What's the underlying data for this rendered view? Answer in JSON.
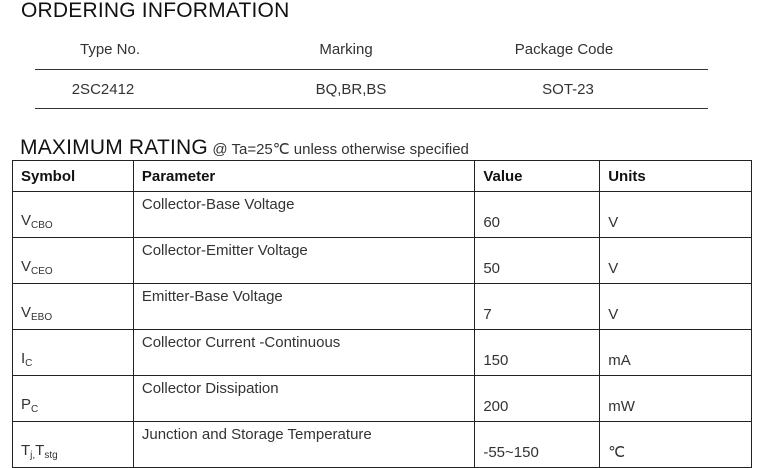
{
  "ordering": {
    "title": "ORDERING INFORMATION",
    "headers": [
      "Type No.",
      "Marking",
      "Package Code"
    ],
    "row": [
      "2SC2412",
      "BQ,BR,BS",
      "SOT-23"
    ]
  },
  "max_rating": {
    "title": "MAXIMUM RATING",
    "condition": "@ Ta=25℃ unless otherwise specified",
    "headers": [
      "Symbol",
      "Parameter",
      "Value",
      "Units"
    ],
    "rows": [
      {
        "sym": "V",
        "sub": "CBO",
        "param": "Collector-Base Voltage",
        "value": "60",
        "unit": "V"
      },
      {
        "sym": "V",
        "sub": "CEO",
        "param": "Collector-Emitter Voltage",
        "value": "50",
        "unit": "V"
      },
      {
        "sym": "V",
        "sub": "EBO",
        "param": "Emitter-Base Voltage",
        "value": "7",
        "unit": "V"
      },
      {
        "sym": "I",
        "sub": "C",
        "param": "Collector Current -Continuous",
        "value": "150",
        "unit": "mA"
      },
      {
        "sym": "P",
        "sub": "C",
        "param": "Collector Dissipation",
        "value": "200",
        "unit": "mW"
      },
      {
        "sym": "T",
        "sub": "j,",
        "sym2": "T",
        "sub2": "stg",
        "param": "Junction and Storage Temperature",
        "value": "-55~150",
        "unit": "℃"
      }
    ]
  }
}
